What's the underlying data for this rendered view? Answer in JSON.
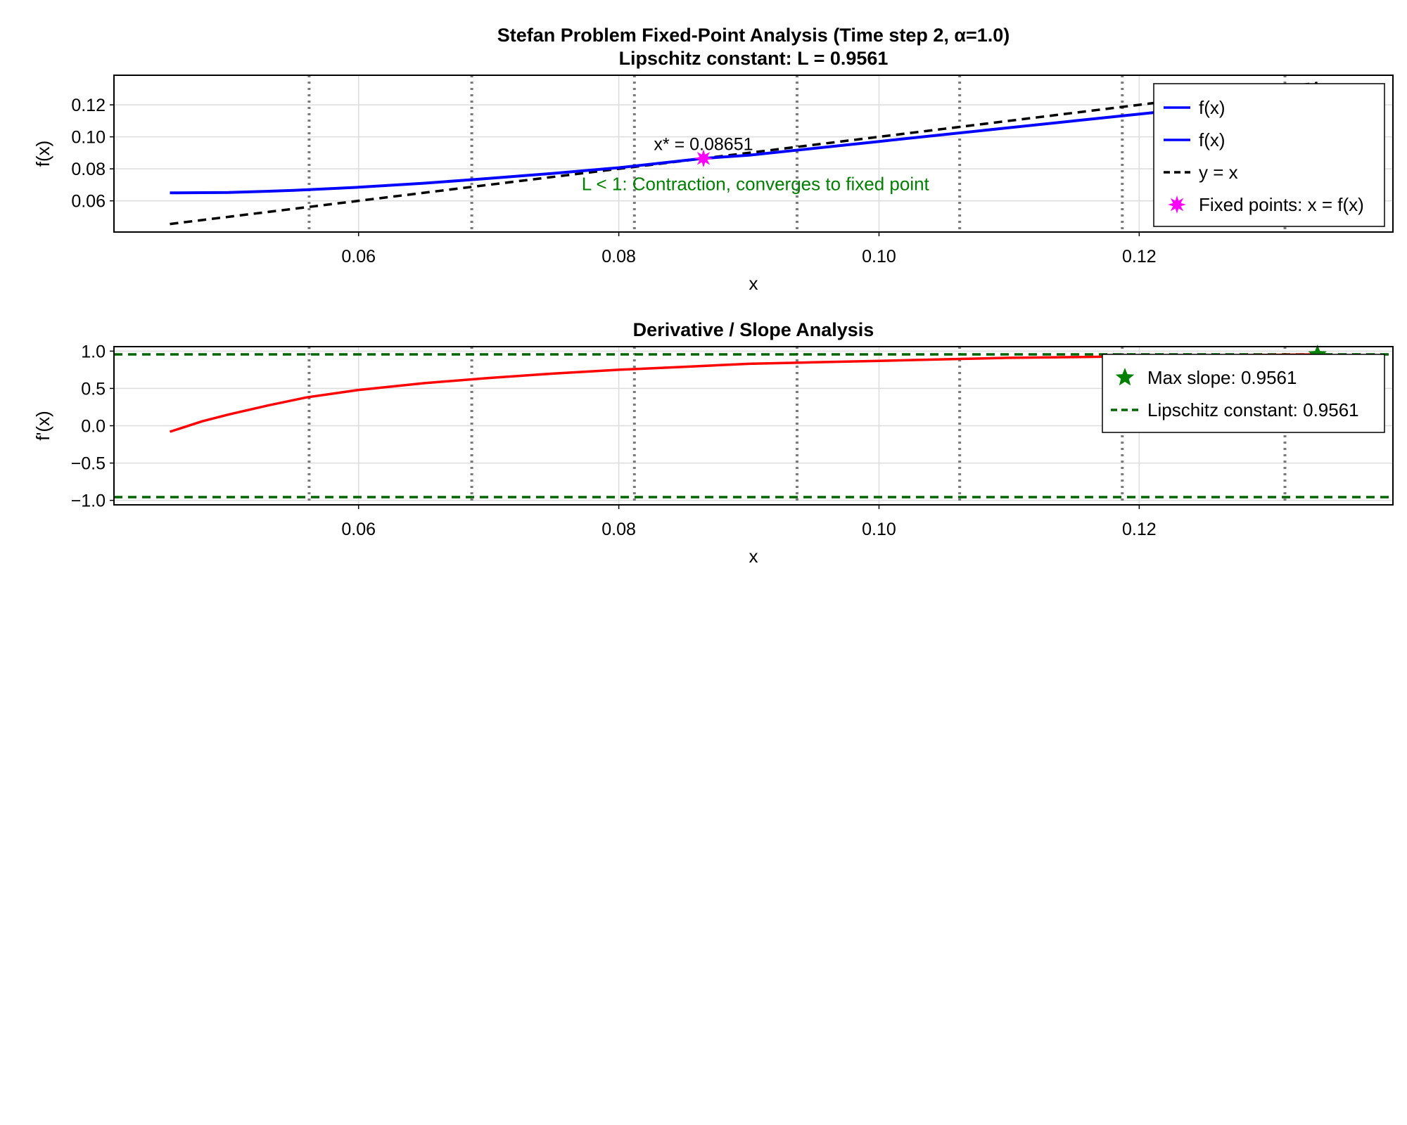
{
  "chart_data": [
    {
      "type": "line",
      "title": "Stefan Problem Fixed-Point Analysis (Time step 2, α=1.0)",
      "subtitle": "Lipschitz constant: L = 0.9561",
      "xlabel": "x",
      "ylabel": "f(x)",
      "xlim": [
        0.0412,
        0.1395
      ],
      "ylim": [
        0.0405,
        0.1385
      ],
      "xticks": [
        "0.06",
        "0.08",
        "0.10",
        "0.12"
      ],
      "yticks": [
        "0.06",
        "0.08",
        "0.10",
        "0.12"
      ],
      "grid": true,
      "legend_position": "top-right",
      "legend": [
        "f(x)",
        "f(x)",
        "y = x",
        "Fixed points: x = f(x)"
      ],
      "vertical_lines": [
        0.0562,
        0.0687,
        0.0812,
        0.0937,
        0.1062,
        0.1187,
        0.1312
      ],
      "series": [
        {
          "name": "f(x)",
          "color": "#0000ff",
          "x": [
            0.0455,
            0.05,
            0.055,
            0.06,
            0.065,
            0.07,
            0.075,
            0.08,
            0.0865,
            0.09,
            0.095,
            0.1,
            0.105,
            0.11,
            0.115,
            0.12,
            0.125,
            0.13,
            0.1337
          ],
          "y": [
            0.065,
            0.0652,
            0.0665,
            0.0685,
            0.071,
            0.074,
            0.0772,
            0.0807,
            0.0865,
            0.0885,
            0.0928,
            0.0971,
            0.1014,
            0.1057,
            0.11,
            0.1142,
            0.1185,
            0.1228,
            0.1262
          ]
        },
        {
          "name": "y = x",
          "color": "#000000",
          "dash": true,
          "x": [
            0.0455,
            0.1337
          ],
          "y": [
            0.0455,
            0.1337
          ]
        }
      ],
      "fixed_points": {
        "name": "Fixed points: x = f(x)",
        "color": "#ff00ff",
        "x": [
          0.08651
        ],
        "y": [
          0.08651
        ],
        "label": "x* = 0.08651"
      },
      "annotation": {
        "text": "L < 1: Contraction, converges to fixed point",
        "color": "#008000",
        "x": 0.0905,
        "y": 0.0705
      }
    },
    {
      "type": "line",
      "title": "Derivative / Slope Analysis",
      "xlabel": "x",
      "ylabel": "f'(x)",
      "xlim": [
        0.0412,
        0.1395
      ],
      "ylim": [
        -1.06,
        1.06
      ],
      "xticks": [
        "0.06",
        "0.08",
        "0.10",
        "0.12"
      ],
      "yticks": [
        "1.0",
        "0.5",
        "0.0",
        "−0.5",
        "−1.0"
      ],
      "grid": true,
      "legend_position": "top-right",
      "legend": [
        "Max slope: 0.9561",
        "Lipschitz constant: 0.9561"
      ],
      "vertical_lines": [
        0.0562,
        0.0687,
        0.0812,
        0.0937,
        0.1062,
        0.1187,
        0.1312
      ],
      "series": [
        {
          "name": "f'(x)",
          "color": "#ff0000",
          "x": [
            0.0455,
            0.048,
            0.05,
            0.053,
            0.056,
            0.06,
            0.065,
            0.07,
            0.075,
            0.08,
            0.085,
            0.09,
            0.095,
            0.1,
            0.105,
            0.11,
            0.115,
            0.12,
            0.125,
            0.13,
            0.1337
          ],
          "y": [
            -0.08,
            0.06,
            0.15,
            0.27,
            0.38,
            0.48,
            0.57,
            0.64,
            0.7,
            0.75,
            0.79,
            0.83,
            0.85,
            0.87,
            0.89,
            0.91,
            0.92,
            0.93,
            0.94,
            0.95,
            0.9561
          ]
        }
      ],
      "max_slope": {
        "name": "Max slope: 0.9561",
        "color": "#008000",
        "x": 0.1337,
        "y": 0.9561
      },
      "reference_lines": {
        "name": "Lipschitz constant: 0.9561",
        "color": "#006400",
        "values": [
          0.9561,
          -0.9561
        ]
      }
    }
  ]
}
